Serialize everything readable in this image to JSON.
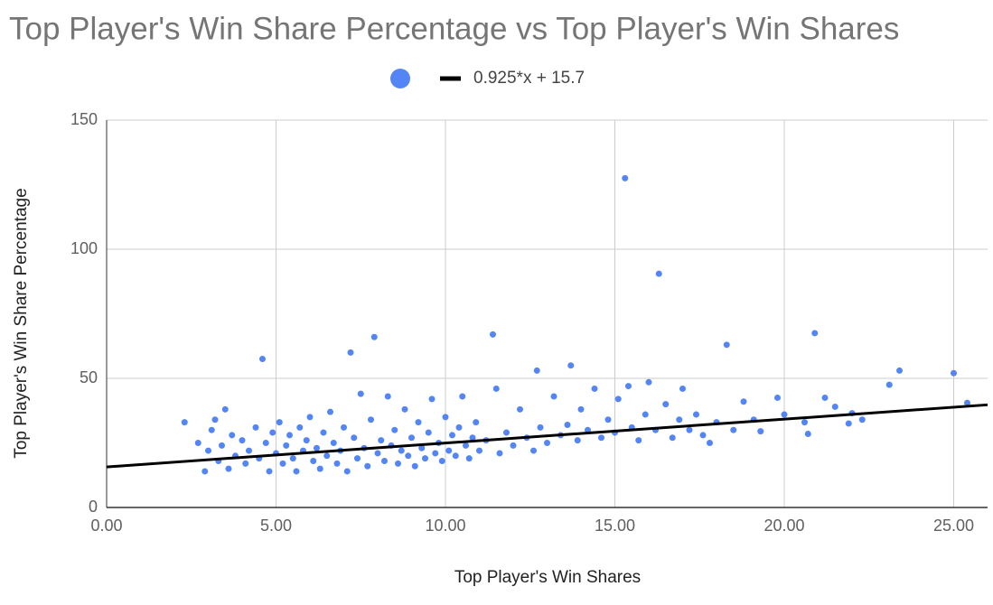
{
  "chart_data": {
    "type": "scatter",
    "title": "Top Player's Win Share Percentage vs Top Player's Win Shares",
    "x_label": "Top Player's Win Shares",
    "y_label": "Top Player's Win Share Percentage",
    "xlim": [
      0,
      26
    ],
    "ylim": [
      0,
      150
    ],
    "xticks": [
      {
        "value": 0,
        "label": "0.00"
      },
      {
        "value": 5,
        "label": "5.00"
      },
      {
        "value": 10,
        "label": "10.00"
      },
      {
        "value": 15,
        "label": "15.00"
      },
      {
        "value": 20,
        "label": "20.00"
      },
      {
        "value": 25,
        "label": "25.00"
      }
    ],
    "yticks": [
      0,
      50,
      100,
      150
    ],
    "grid": true,
    "series": [
      {
        "color": "#5485f5",
        "x": [
          2.3,
          2.7,
          2.9,
          3.0,
          3.1,
          3.2,
          3.3,
          3.4,
          3.5,
          3.6,
          3.7,
          3.8,
          4.0,
          4.1,
          4.2,
          4.4,
          4.5,
          4.6,
          4.7,
          4.8,
          4.9,
          5.0,
          5.1,
          5.2,
          5.3,
          5.4,
          5.5,
          5.6,
          5.7,
          5.8,
          5.9,
          6.0,
          6.1,
          6.2,
          6.3,
          6.4,
          6.5,
          6.6,
          6.7,
          6.8,
          6.9,
          7.0,
          7.1,
          7.2,
          7.3,
          7.4,
          7.5,
          7.6,
          7.7,
          7.8,
          7.9,
          8.0,
          8.1,
          8.2,
          8.3,
          8.4,
          8.5,
          8.6,
          8.7,
          8.8,
          8.9,
          9.0,
          9.1,
          9.2,
          9.3,
          9.4,
          9.5,
          9.6,
          9.7,
          9.8,
          9.9,
          10.0,
          10.1,
          10.2,
          10.3,
          10.4,
          10.5,
          10.6,
          10.7,
          10.8,
          10.9,
          11.0,
          11.2,
          11.4,
          11.5,
          11.6,
          11.8,
          12.0,
          12.2,
          12.4,
          12.6,
          12.7,
          12.8,
          13.0,
          13.2,
          13.4,
          13.6,
          13.7,
          13.9,
          14.0,
          14.2,
          14.4,
          14.6,
          14.8,
          15.0,
          15.1,
          15.3,
          15.4,
          15.5,
          15.7,
          15.9,
          16.0,
          16.2,
          16.3,
          16.5,
          16.7,
          16.9,
          17.0,
          17.2,
          17.4,
          17.6,
          17.8,
          18.0,
          18.3,
          18.5,
          18.8,
          19.1,
          19.3,
          19.8,
          20.0,
          20.6,
          20.7,
          20.9,
          21.2,
          21.5,
          21.9,
          22.0,
          22.3,
          23.1,
          23.4,
          25.0,
          25.4
        ],
        "values": [
          33,
          25,
          14,
          22,
          30,
          34,
          18,
          24,
          38,
          15,
          28,
          20,
          26,
          17,
          22,
          31,
          19,
          57.5,
          25,
          14,
          29,
          21,
          33,
          17,
          24,
          28,
          19,
          14,
          31,
          22,
          26,
          35,
          18,
          23,
          15,
          29,
          20,
          37,
          25,
          17,
          22,
          31,
          14,
          60,
          27,
          19,
          44,
          23,
          16,
          34,
          66,
          21,
          26,
          18,
          43,
          24,
          30,
          17,
          22,
          38,
          20,
          27,
          16,
          33,
          23,
          19,
          29,
          42,
          21,
          25,
          18,
          35,
          22,
          28,
          20,
          31,
          43,
          24,
          19,
          27,
          33,
          22,
          26,
          67,
          46,
          21,
          29,
          24,
          38,
          27,
          22,
          53,
          31,
          25,
          43,
          28,
          32,
          55,
          26,
          38,
          30,
          46,
          27,
          34,
          29,
          42,
          127.5,
          47,
          31,
          26,
          36,
          48.5,
          30,
          90.5,
          40,
          27,
          34,
          46,
          30,
          36,
          28,
          25,
          33,
          63,
          30,
          41,
          34,
          29.5,
          42.5,
          36,
          33,
          28.5,
          67.5,
          42.5,
          39,
          32.5,
          36.5,
          34,
          47.5,
          53,
          52,
          40.5
        ]
      }
    ],
    "trendline": {
      "label": "0.925*x + 15.7",
      "slope": 0.925,
      "intercept": 15.7,
      "color": "#000000"
    }
  }
}
